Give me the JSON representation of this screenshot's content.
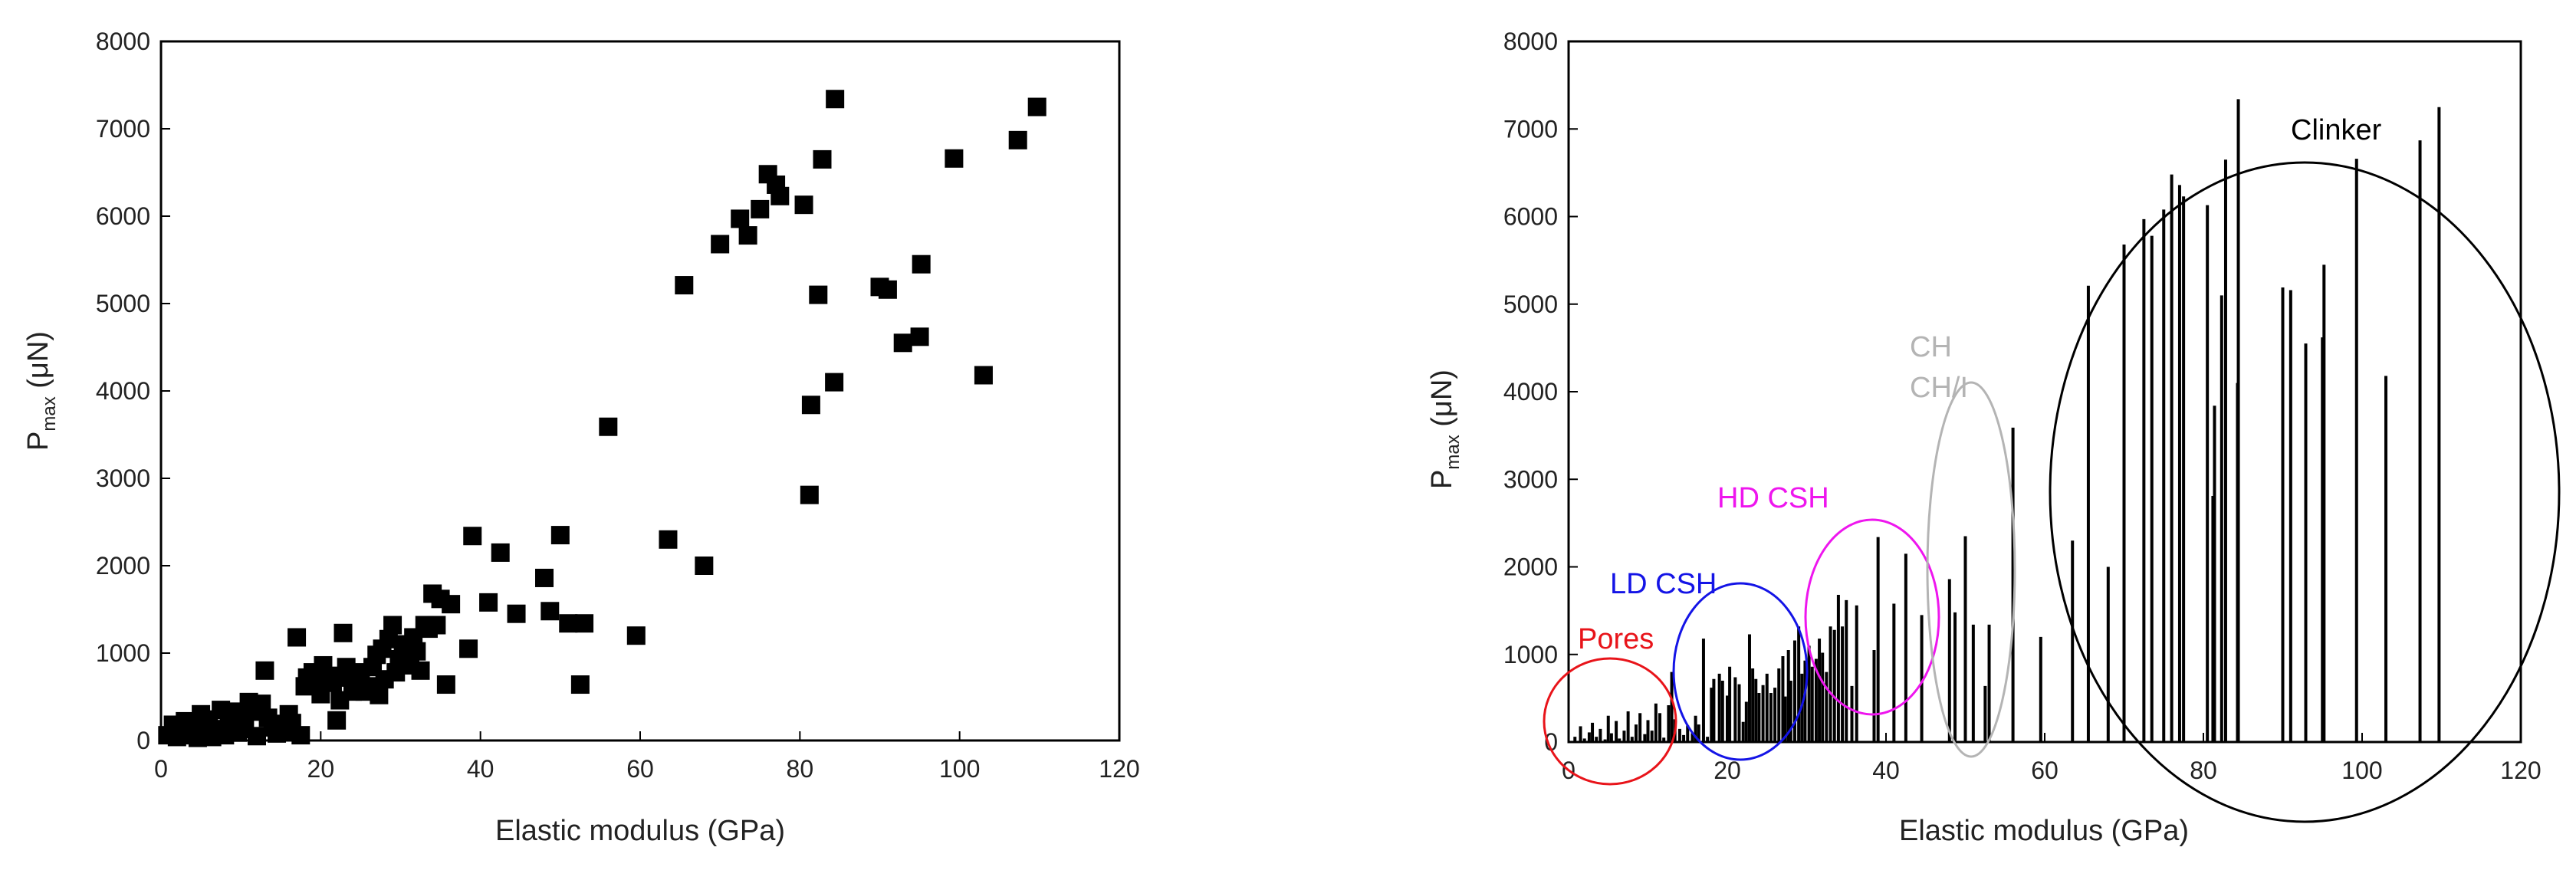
{
  "chart_data": [
    {
      "type": "scatter",
      "title": "",
      "xlabel": "Elastic modulus (GPa)",
      "ylabel": {
        "main": "P",
        "sub": "max",
        "unit": " (μN)"
      },
      "xlim": [
        0,
        120
      ],
      "ylim": [
        0,
        8000
      ],
      "xticks": [
        0,
        20,
        40,
        60,
        80,
        100,
        120
      ],
      "yticks": [
        0,
        1000,
        2000,
        3000,
        4000,
        5000,
        6000,
        7000,
        8000
      ],
      "grid": false,
      "marker": "square",
      "color": "#000000",
      "points": [
        [
          0.8,
          60
        ],
        [
          1.5,
          180
        ],
        [
          2,
          40
        ],
        [
          2.6,
          110
        ],
        [
          3,
          220
        ],
        [
          3.5,
          60
        ],
        [
          4,
          150
        ],
        [
          4.6,
          30
        ],
        [
          5,
          300
        ],
        [
          5.4,
          100
        ],
        [
          6,
          240
        ],
        [
          6.4,
          40
        ],
        [
          7,
          130
        ],
        [
          7.5,
          350
        ],
        [
          8,
          60
        ],
        [
          8.5,
          200
        ],
        [
          9,
          330
        ],
        [
          9.6,
          90
        ],
        [
          10,
          250
        ],
        [
          10.5,
          130
        ],
        [
          11,
          440
        ],
        [
          11.5,
          330
        ],
        [
          12,
          50
        ],
        [
          12.6,
          420
        ],
        [
          13,
          800
        ],
        [
          13.4,
          260
        ],
        [
          14,
          150
        ],
        [
          14.5,
          80
        ],
        [
          15,
          190
        ],
        [
          15.6,
          100
        ],
        [
          16,
          300
        ],
        [
          16.4,
          200
        ],
        [
          17,
          1180
        ],
        [
          17.5,
          60
        ],
        [
          18,
          620
        ],
        [
          18.3,
          720
        ],
        [
          19,
          780
        ],
        [
          19.4,
          700
        ],
        [
          20,
          530
        ],
        [
          20.3,
          860
        ],
        [
          21,
          740
        ],
        [
          21.5,
          660
        ],
        [
          22,
          230
        ],
        [
          22.4,
          460
        ],
        [
          22.8,
          1230
        ],
        [
          23.2,
          840
        ],
        [
          23.6,
          720
        ],
        [
          24,
          560
        ],
        [
          24.5,
          650
        ],
        [
          25,
          780
        ],
        [
          25.5,
          560
        ],
        [
          26,
          620
        ],
        [
          26.5,
          840
        ],
        [
          27,
          980
        ],
        [
          27.3,
          520
        ],
        [
          27.7,
          1050
        ],
        [
          28,
          700
        ],
        [
          28.5,
          1160
        ],
        [
          29,
          1320
        ],
        [
          29.4,
          780
        ],
        [
          29.8,
          930
        ],
        [
          30.3,
          1100
        ],
        [
          30.7,
          860
        ],
        [
          31.2,
          950
        ],
        [
          31.6,
          1180
        ],
        [
          32,
          1020
        ],
        [
          32.5,
          800
        ],
        [
          33,
          1320
        ],
        [
          33.5,
          1280
        ],
        [
          34,
          1680
        ],
        [
          34.5,
          1320
        ],
        [
          35,
          1620
        ],
        [
          35.7,
          640
        ],
        [
          36.3,
          1560
        ],
        [
          38.5,
          1050
        ],
        [
          39,
          2340
        ],
        [
          41,
          1580
        ],
        [
          42.5,
          2150
        ],
        [
          44.5,
          1450
        ],
        [
          48,
          1860
        ],
        [
          48.7,
          1480
        ],
        [
          50,
          2350
        ],
        [
          51,
          1340
        ],
        [
          52.5,
          640
        ],
        [
          53,
          1340
        ],
        [
          56,
          3590
        ],
        [
          59.5,
          1200
        ],
        [
          63.5,
          2300
        ],
        [
          65.5,
          5210
        ],
        [
          68,
          2000
        ],
        [
          70,
          5680
        ],
        [
          72.5,
          5970
        ],
        [
          73.5,
          5780
        ],
        [
          75,
          6080
        ],
        [
          76,
          6480
        ],
        [
          77,
          6360
        ],
        [
          77.5,
          6230
        ],
        [
          80.5,
          6130
        ],
        [
          81.2,
          2810
        ],
        [
          81.4,
          3840
        ],
        [
          82.3,
          5100
        ],
        [
          82.8,
          6650
        ],
        [
          84.3,
          4100
        ],
        [
          84.4,
          7340
        ],
        [
          90,
          5190
        ],
        [
          91,
          5160
        ],
        [
          92.9,
          4550
        ],
        [
          95,
          4620
        ],
        [
          95.2,
          5450
        ],
        [
          99.3,
          6660
        ],
        [
          103,
          4180
        ],
        [
          107.3,
          6870
        ],
        [
          109.7,
          7250
        ]
      ]
    },
    {
      "type": "bar",
      "title": "",
      "xlabel": "Elastic modulus (GPa)",
      "ylabel": {
        "main": "P",
        "sub": "max",
        "unit": " (μN)"
      },
      "xlim": [
        0,
        120
      ],
      "ylim": [
        0,
        8000
      ],
      "xticks": [
        0,
        20,
        40,
        60,
        80,
        100,
        120
      ],
      "yticks": [
        0,
        1000,
        2000,
        3000,
        4000,
        5000,
        6000,
        7000,
        8000
      ],
      "grid": false,
      "color": "#000000",
      "bars_source": "same values as the left scatter",
      "annotations": [
        {
          "text": "Pores",
          "color": "#e8141a"
        },
        {
          "text": "LD CSH",
          "color": "#1414e6"
        },
        {
          "text": "HD CSH",
          "color": "#ee16ee"
        },
        {
          "text": "CH",
          "color": "#b4b4b4"
        },
        {
          "text": "CH/I",
          "color": "#b4b4b4"
        },
        {
          "text": "Clinker",
          "color": "#000000"
        }
      ]
    }
  ]
}
